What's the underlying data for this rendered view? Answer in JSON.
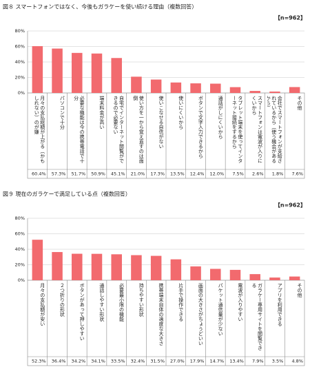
{
  "chart_data": [
    {
      "type": "bar",
      "title": "図８ スマートフォンではなく、今後もガラケーを使い続ける理由（複数回答）",
      "annotation": "【n=962】",
      "categories": [
        "月々の支払総額が上がる（かもしれない）のが嫌",
        "パソコンで十分",
        "必要な機能は今の携帯電話で十分",
        "端末料金が高い",
        "自宅でインターネット閲覧ができるので必要ない",
        "使い方を一から覚え直すのは面倒",
        "使いこなせる自信がない",
        "使いにくいから",
        "ボタンで文字入力できるから",
        "通話がしにくいから",
        "タブレット端末を使ってインターネット接続をするから",
        "スマートフォンは電波が入りにくいから",
        "会社でスマートフォンが支給されているから（使う機会があるから）",
        "その他"
      ],
      "values": [
        60.4,
        57.3,
        51.7,
        50.9,
        45.1,
        21.0,
        17.3,
        13.5,
        12.4,
        12.0,
        7.5,
        2.6,
        1.8,
        7.6
      ],
      "value_labels": [
        "60.4%",
        "57.3%",
        "51.7%",
        "50.9%",
        "45.1%",
        "21.0%",
        "17.3%",
        "13.5%",
        "12.4%",
        "12.0%",
        "7.5%",
        "2.6%",
        "1.8%",
        "7.6%"
      ],
      "color": "#f26a6e",
      "ylim": [
        0,
        80
      ],
      "yticks": [
        {
          "value": 0,
          "label": "0%"
        },
        {
          "value": 20,
          "label": "20%"
        },
        {
          "value": 40,
          "label": "40%"
        },
        {
          "value": 60,
          "label": "60%"
        },
        {
          "value": 80,
          "label": "80%"
        }
      ],
      "grid": true
    },
    {
      "type": "bar",
      "title": "図９ 現在のガラケーで満足している点（複数回答）",
      "annotation": "【n=962】",
      "categories": [
        "月々の支払額が安い",
        "２つ折りの形状",
        "ボタンがあって押しやすい",
        "通話しやすい形状",
        "必要最小限の機能",
        "持ちやすい形状",
        "携帯端末自体の適度な大きさ",
        "片手で操作できる",
        "画面の大きさがちょうどいい",
        "パケット通信量が少ない",
        "電波が入りやすい",
        "ガラケー専用サイトを閲覧できる",
        "アプリを利用できる",
        "その他"
      ],
      "values": [
        52.3,
        36.4,
        34.2,
        34.1,
        33.5,
        32.4,
        31.5,
        27.0,
        17.9,
        14.7,
        13.4,
        7.9,
        3.5,
        4.8
      ],
      "value_labels": [
        "52.3%",
        "36.4%",
        "34.2%",
        "34.1%",
        "33.5%",
        "32.4%",
        "31.5%",
        "27.0%",
        "17.9%",
        "14.7%",
        "13.4%",
        "7.9%",
        "3.5%",
        "4.8%"
      ],
      "color": "#f26a6e",
      "ylim": [
        0,
        80
      ],
      "yticks": [
        {
          "value": 0,
          "label": "0%"
        },
        {
          "value": 20,
          "label": "20%"
        },
        {
          "value": 40,
          "label": "40%"
        },
        {
          "value": 60,
          "label": "60%"
        },
        {
          "value": 80,
          "label": "80%"
        }
      ],
      "grid": true
    }
  ]
}
